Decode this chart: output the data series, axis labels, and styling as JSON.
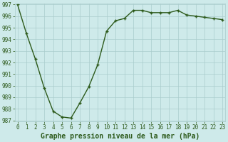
{
  "x": [
    0,
    1,
    2,
    3,
    4,
    5,
    6,
    7,
    8,
    9,
    10,
    11,
    12,
    13,
    14,
    15,
    16,
    17,
    18,
    19,
    20,
    21,
    22,
    23
  ],
  "y": [
    997.0,
    994.5,
    992.3,
    989.8,
    987.8,
    987.3,
    987.2,
    988.5,
    989.9,
    991.8,
    994.7,
    995.6,
    995.8,
    996.5,
    996.5,
    996.3,
    996.3,
    996.3,
    996.5,
    996.1,
    996.0,
    995.9,
    995.8,
    995.7
  ],
  "ylim_min": 987,
  "ylim_max": 997,
  "yticks": [
    987,
    988,
    989,
    990,
    991,
    992,
    993,
    994,
    995,
    996,
    997
  ],
  "xticks": [
    0,
    1,
    2,
    3,
    4,
    5,
    6,
    7,
    8,
    9,
    10,
    11,
    12,
    13,
    14,
    15,
    16,
    17,
    18,
    19,
    20,
    21,
    22,
    23
  ],
  "line_color": "#2d5a1b",
  "marker": "+",
  "marker_size": 3,
  "marker_edge_width": 1.0,
  "bg_color": "#ceeaea",
  "grid_color": "#aacccc",
  "xlabel": "Graphe pression niveau de la mer (hPa)",
  "xlabel_fontsize": 7,
  "tick_fontsize": 5.5,
  "line_width": 1.0
}
